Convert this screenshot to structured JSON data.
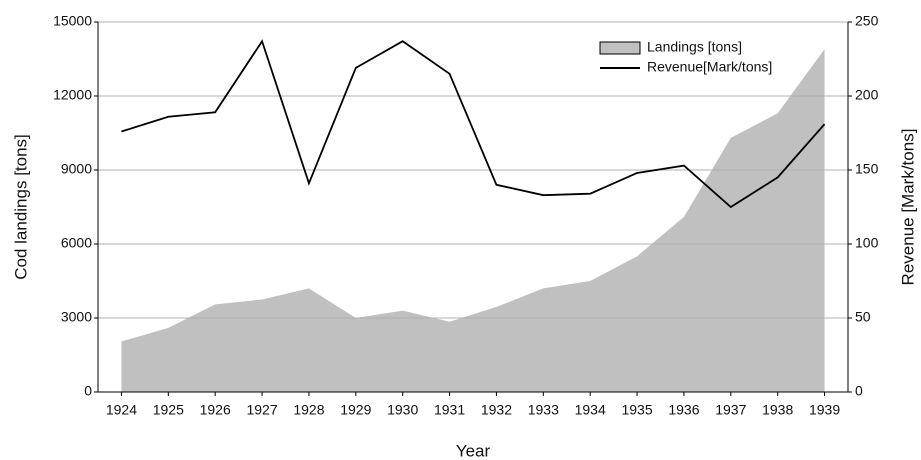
{
  "chart_data": {
    "type": "area_line",
    "xlabel": "Year",
    "ylabel": "Cod landings [tons]",
    "y2label": "Revenue [Mark/tons]",
    "categories": [
      "1924",
      "1925",
      "1926",
      "1927",
      "1928",
      "1929",
      "1930",
      "1931",
      "1932",
      "1933",
      "1934",
      "1935",
      "1936",
      "1937",
      "1938",
      "1939"
    ],
    "series": [
      {
        "name": "Landings [tons]",
        "color": "#c0c0c0",
        "kind": "area",
        "values": [
          2050,
          2600,
          3550,
          3750,
          4200,
          3000,
          3300,
          2850,
          3450,
          4200,
          4500,
          5500,
          7100,
          10300,
          11300,
          13900
        ]
      },
      {
        "name": "Revenue[Mark/tons]",
        "color": "#000000",
        "kind": "line",
        "axis": "y2",
        "values": [
          176,
          186,
          189,
          237,
          141,
          219,
          237,
          215,
          140,
          133,
          134,
          148,
          153,
          125,
          145,
          181
        ]
      }
    ],
    "ylim": [
      0,
      15000
    ],
    "yticks": [
      0,
      3000,
      6000,
      9000,
      12000,
      15000
    ],
    "y2lim": [
      0,
      250
    ],
    "y2ticks": [
      0,
      50,
      100,
      150,
      200,
      250
    ],
    "grid": true,
    "legend": "upper right"
  }
}
